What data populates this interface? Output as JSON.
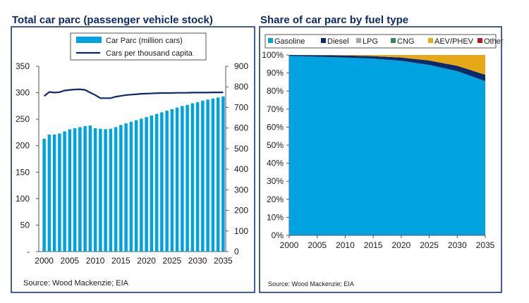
{
  "charts": {
    "left_title": "Total car parc (passenger vehicle stock)",
    "right_title": "Share of car parc by fuel type",
    "left_source": "Source: Wood Mackenzie; EIA",
    "right_source": "Source: Wood Mackenzie; EIA"
  },
  "colors": {
    "frame": "#0a2a6b",
    "bar": "#00a3e0",
    "line": "#0a2a6b",
    "gasoline": "#00a3e0",
    "diesel": "#0a2a6b",
    "lpg": "#a6a6a6",
    "cng": "#2e8b57",
    "aev": "#e6a817",
    "other": "#b01e23"
  },
  "chart_data": [
    {
      "type": "bar",
      "title": "Total car parc (passenger vehicle stock)",
      "categories": [
        2000,
        2001,
        2002,
        2003,
        2004,
        2005,
        2006,
        2007,
        2008,
        2009,
        2010,
        2011,
        2012,
        2013,
        2014,
        2015,
        2016,
        2017,
        2018,
        2019,
        2020,
        2021,
        2022,
        2023,
        2024,
        2025,
        2026,
        2027,
        2028,
        2029,
        2030,
        2031,
        2032,
        2033,
        2034,
        2035
      ],
      "x_tick_labels": [
        "2000",
        "2005",
        "2010",
        "2015",
        "2020",
        "2025",
        "2030",
        "2035"
      ],
      "series": [
        {
          "name": "Car Parc (million cars)",
          "axis": "left",
          "values": [
            213,
            221,
            221,
            223,
            227,
            231,
            233,
            235,
            237,
            238,
            233,
            232,
            231,
            232,
            235,
            239,
            242,
            245,
            248,
            251,
            254,
            257,
            260,
            263,
            266,
            269,
            272,
            275,
            277,
            280,
            282,
            285,
            287,
            289,
            291,
            293
          ]
        },
        {
          "name": "Cars per thousand capita",
          "type": "line",
          "axis": "right",
          "values": [
            755,
            775,
            772,
            774,
            782,
            785,
            787,
            788,
            785,
            772,
            760,
            745,
            745,
            745,
            752,
            756,
            760,
            762,
            764,
            766,
            767,
            768,
            769,
            770,
            770,
            770,
            771,
            771,
            771,
            772,
            772,
            772,
            772,
            773,
            773,
            773
          ]
        }
      ],
      "ylim_left": [
        0,
        350
      ],
      "y_ticks_left": [
        "-",
        "50",
        "100",
        "150",
        "200",
        "250",
        "300",
        "350"
      ],
      "ylim_right": [
        0,
        900
      ],
      "y_ticks_right": [
        "0",
        "100",
        "200",
        "300",
        "400",
        "500",
        "600",
        "700",
        "800",
        "900"
      ],
      "legend": "top"
    },
    {
      "type": "area",
      "title": "Share of car parc by fuel type",
      "x": [
        2000,
        2005,
        2010,
        2015,
        2020,
        2025,
        2030,
        2035
      ],
      "series": [
        {
          "name": "Gasoline",
          "values": [
            99.5,
            99.0,
            98.6,
            98.0,
            96.8,
            94.5,
            91.0,
            85.5
          ]
        },
        {
          "name": "Diesel",
          "values": [
            0.5,
            0.9,
            1.1,
            1.3,
            1.8,
            2.4,
            3.0,
            3.5
          ]
        },
        {
          "name": "LPG",
          "values": [
            0,
            0,
            0,
            0,
            0,
            0,
            0,
            0
          ]
        },
        {
          "name": "CNG",
          "values": [
            0,
            0,
            0,
            0,
            0,
            0,
            0,
            0
          ]
        },
        {
          "name": "AEV/PHEV",
          "values": [
            0,
            0.1,
            0.3,
            0.7,
            1.4,
            3.1,
            6.0,
            11.0
          ]
        },
        {
          "name": "Other",
          "values": [
            0,
            0,
            0,
            0,
            0,
            0,
            0,
            0
          ]
        }
      ],
      "ylim": [
        0,
        100
      ],
      "y_ticks": [
        "0%",
        "10%",
        "20%",
        "30%",
        "40%",
        "50%",
        "60%",
        "70%",
        "80%",
        "90%",
        "100%"
      ],
      "legend": "top"
    }
  ]
}
